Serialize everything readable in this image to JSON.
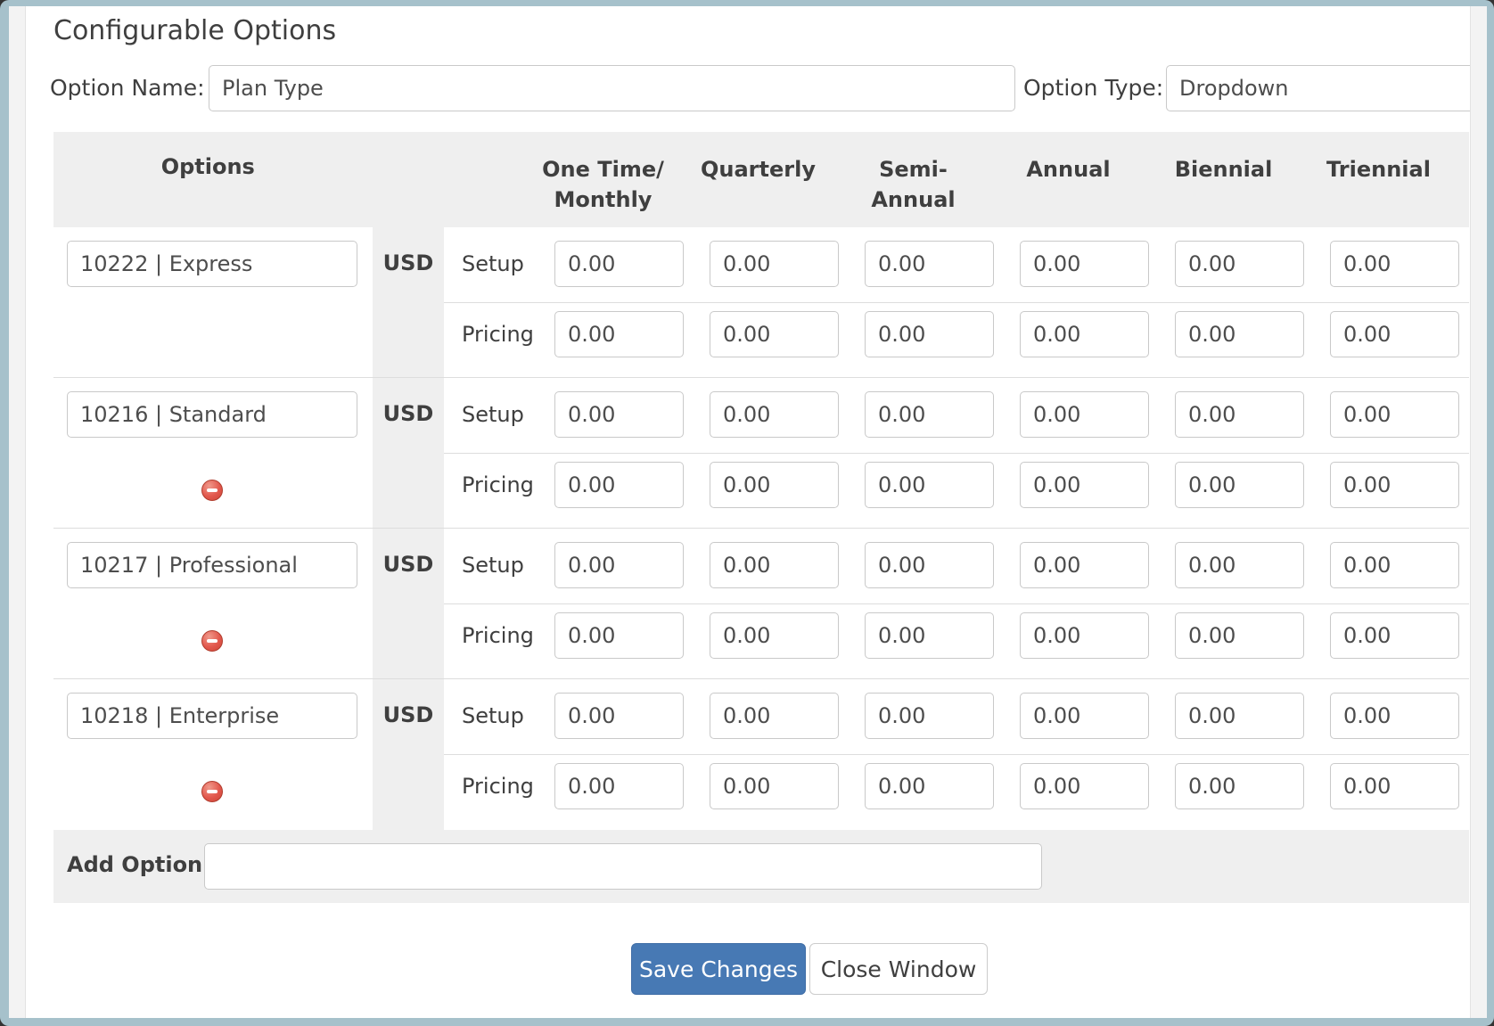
{
  "window": {
    "title": "Configurable Options"
  },
  "form": {
    "option_name_label": "Option Name:",
    "option_name_value": "Plan Type",
    "option_type_label": "Option Type:",
    "option_type_value": "Dropdown"
  },
  "table": {
    "options_header": "Options",
    "currency": "USD",
    "period_headers": [
      [
        "One Time/",
        "Monthly"
      ],
      [
        "Quarterly"
      ],
      [
        "Semi-",
        "Annual"
      ],
      [
        "Annual"
      ],
      [
        "Biennial"
      ],
      [
        "Triennial"
      ]
    ],
    "row_labels": {
      "setup": "Setup",
      "pricing": "Pricing"
    },
    "options": [
      {
        "name": "10222 | Express",
        "removable": false,
        "setup": [
          "0.00",
          "0.00",
          "0.00",
          "0.00",
          "0.00",
          "0.00"
        ],
        "pricing": [
          "0.00",
          "0.00",
          "0.00",
          "0.00",
          "0.00",
          "0.00"
        ]
      },
      {
        "name": "10216 | Standard",
        "removable": true,
        "setup": [
          "0.00",
          "0.00",
          "0.00",
          "0.00",
          "0.00",
          "0.00"
        ],
        "pricing": [
          "0.00",
          "0.00",
          "0.00",
          "0.00",
          "0.00",
          "0.00"
        ]
      },
      {
        "name": "10217 | Professional",
        "removable": true,
        "setup": [
          "0.00",
          "0.00",
          "0.00",
          "0.00",
          "0.00",
          "0.00"
        ],
        "pricing": [
          "0.00",
          "0.00",
          "0.00",
          "0.00",
          "0.00",
          "0.00"
        ]
      },
      {
        "name": "10218 | Enterprise",
        "removable": true,
        "setup": [
          "0.00",
          "0.00",
          "0.00",
          "0.00",
          "0.00",
          "0.00"
        ],
        "pricing": [
          "0.00",
          "0.00",
          "0.00",
          "0.00",
          "0.00",
          "0.00"
        ]
      }
    ],
    "add_option_label": "Add Option:",
    "add_option_value": ""
  },
  "buttons": {
    "save": "Save Changes",
    "close": "Close Window"
  },
  "colors": {
    "accent_blue": "#4779b4",
    "remove_red": "#e2584d",
    "band_gray": "#efefef",
    "frame_blue_gray": "#a6c1cb"
  }
}
